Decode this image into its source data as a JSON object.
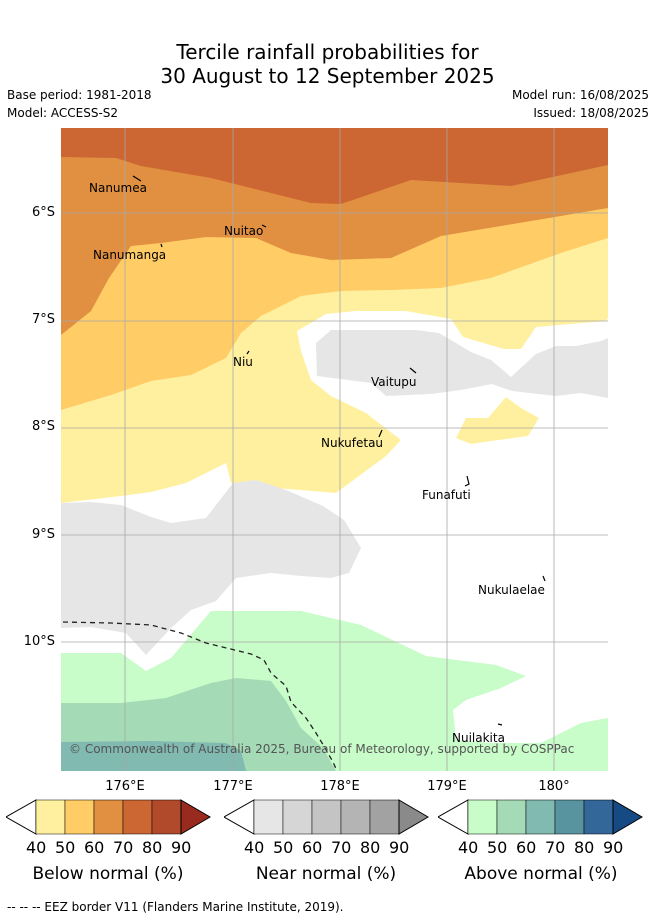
{
  "header": {
    "title_line1": "Tercile rainfall probabilities for",
    "title_line2": "30 August to 12 September 2025",
    "base_period": "Base period: 1981-2018",
    "model": "Model: ACCESS-S2",
    "model_run": "Model run: 16/08/2025",
    "issued": "Issued: 18/08/2025"
  },
  "map": {
    "lat_labels": [
      "6°S",
      "7°S",
      "8°S",
      "9°S",
      "10°S"
    ],
    "lon_labels": [
      "176°E",
      "177°E",
      "178°E",
      "179°E",
      "180°"
    ],
    "islands": [
      {
        "name": "Nanumea"
      },
      {
        "name": "Nuitao"
      },
      {
        "name": "Nanumanga"
      },
      {
        "name": "Niu"
      },
      {
        "name": "Vaitupu"
      },
      {
        "name": "Nukufetau"
      },
      {
        "name": "Funafuti"
      },
      {
        "name": "Nukulaelae"
      },
      {
        "name": "Nuilakita"
      }
    ],
    "copyright": "© Commonwealth of Australia 2025, Bureau of Meteorology, supported by COSPPac"
  },
  "colorbars": [
    {
      "title": "Below normal (%)",
      "ticks": [
        "40",
        "50",
        "60",
        "70",
        "80",
        "90"
      ],
      "colors": [
        "#fff0a0",
        "#ffcc66",
        "#e09040",
        "#cc6633",
        "#b04a2a",
        "#992b1e"
      ]
    },
    {
      "title": "Near normal (%)",
      "ticks": [
        "40",
        "50",
        "60",
        "70",
        "80",
        "90"
      ],
      "colors": [
        "#e6e6e6",
        "#d6d6d6",
        "#c4c4c4",
        "#b4b4b4",
        "#a2a2a2",
        "#8a8a8a"
      ]
    },
    {
      "title": "Above normal (%)",
      "ticks": [
        "40",
        "50",
        "60",
        "70",
        "80",
        "90"
      ],
      "colors": [
        "#c8fcc8",
        "#a4dab6",
        "#80bab0",
        "#5894a0",
        "#336699",
        "#164a84"
      ]
    }
  ],
  "footer": {
    "legend_line": "-- -- -- EEZ border V11 (Flanders Marine Institute, 2019)."
  }
}
